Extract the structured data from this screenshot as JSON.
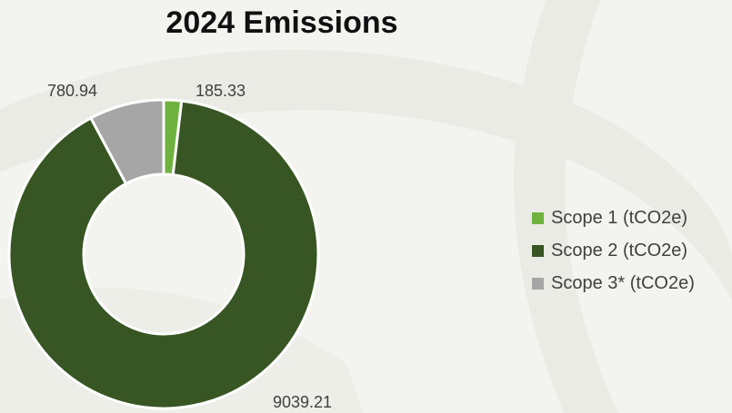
{
  "chart_data": {
    "type": "pie",
    "title": "2024 Emissions",
    "categories": [
      "Scope 1 (tCO2e)",
      "Scope 2 (tCO2e)",
      "Scope 3* (tCO2e)"
    ],
    "values": [
      185.33,
      9039.21,
      780.94
    ],
    "value_labels": [
      "185.33",
      "9039.21",
      "780.94"
    ],
    "colors": [
      "#6fb23f",
      "#375623",
      "#a6a6a6"
    ],
    "donut": true,
    "legend_position": "right"
  }
}
